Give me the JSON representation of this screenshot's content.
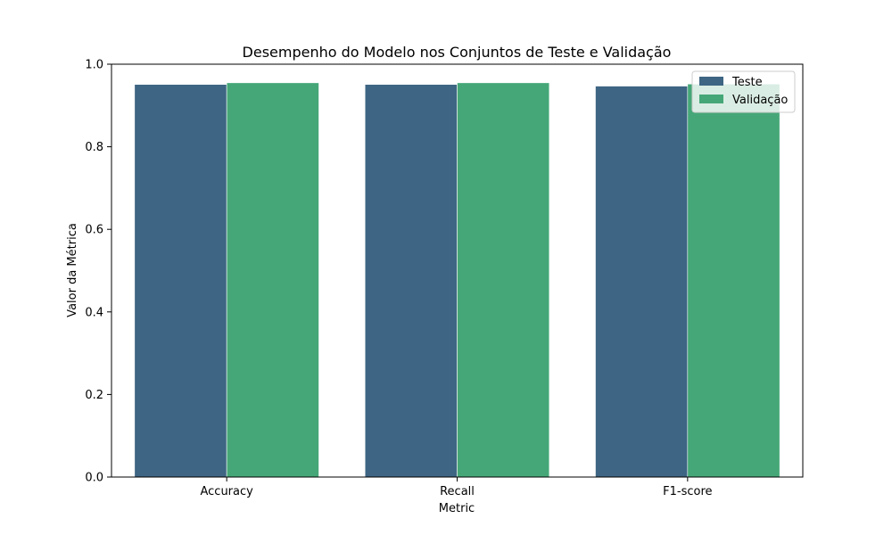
{
  "chart_data": {
    "type": "bar",
    "title": "Desempenho do Modelo nos Conjuntos de Teste e Validação",
    "xlabel": "Metric",
    "ylabel": "Valor da Métrica",
    "categories": [
      "Accuracy",
      "Recall",
      "F1-score"
    ],
    "series": [
      {
        "name": "Teste",
        "values": [
          0.951,
          0.951,
          0.947
        ],
        "color": "#3e6583"
      },
      {
        "name": "Validação",
        "values": [
          0.955,
          0.955,
          0.952
        ],
        "color": "#45a777"
      }
    ],
    "ylim": [
      0,
      1.0
    ],
    "yticks": [
      "0.0",
      "0.2",
      "0.4",
      "0.6",
      "0.8",
      "1.0"
    ],
    "grid": false,
    "legend_position": "top-right"
  }
}
